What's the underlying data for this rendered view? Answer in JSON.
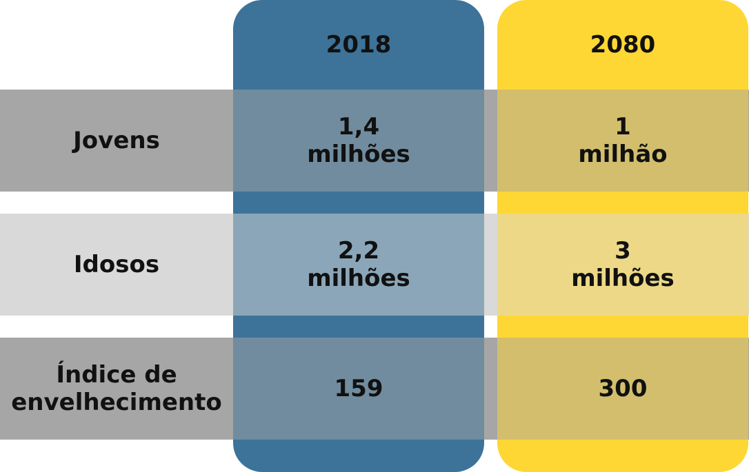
{
  "table": {
    "header": [
      "2018",
      "2080"
    ],
    "rows": [
      [
        "Jovens",
        "1,4\nmilhões",
        "1\nmilhão"
      ],
      [
        "Idosos",
        "2,2\nmilhões",
        "3\nmilhões"
      ],
      [
        "Índice de\nenvelhecimento",
        "159",
        "300"
      ]
    ]
  }
}
